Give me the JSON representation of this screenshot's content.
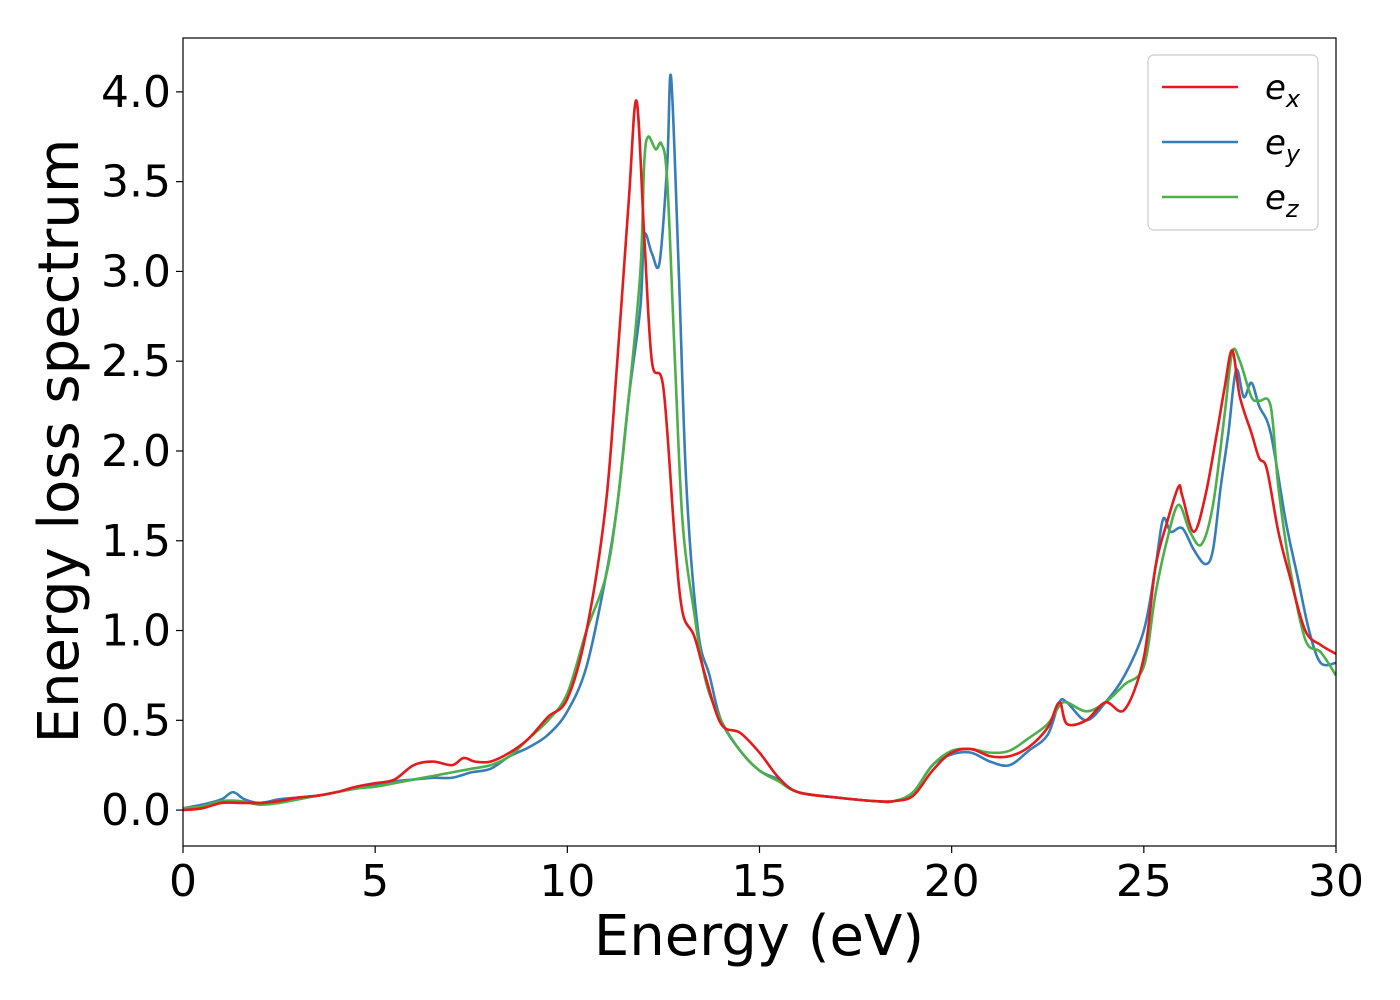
{
  "chart_data": {
    "type": "line",
    "title": "",
    "xlabel": "Energy (eV)",
    "ylabel": "Energy loss spectrum",
    "xlim": [
      0,
      30
    ],
    "ylim": [
      -0.2,
      4.3
    ],
    "xticks": [
      0,
      5,
      10,
      15,
      20,
      25,
      30
    ],
    "xtick_labels": [
      "0",
      "5",
      "10",
      "15",
      "20",
      "25",
      "30"
    ],
    "yticks": [
      0.0,
      0.5,
      1.0,
      1.5,
      2.0,
      2.5,
      3.0,
      3.5,
      4.0
    ],
    "ytick_labels": [
      "0.0",
      "0.5",
      "1.0",
      "1.5",
      "2.0",
      "2.5",
      "3.0",
      "3.5",
      "4.0"
    ],
    "grid": false,
    "legend_position": "top-right",
    "series": [
      {
        "name": "e_x",
        "legend_base": "e",
        "legend_sub": "x",
        "color": "#e41a1c",
        "x": [
          0,
          0.5,
          1.0,
          1.5,
          2.0,
          2.5,
          3.0,
          3.5,
          4.0,
          4.5,
          5.0,
          5.5,
          6.0,
          6.5,
          7.0,
          7.3,
          7.6,
          8.0,
          8.5,
          9.0,
          9.5,
          10.0,
          10.5,
          11.0,
          11.3,
          11.6,
          11.8,
          12.0,
          12.2,
          12.5,
          12.8,
          13.0,
          13.3,
          13.6,
          14.0,
          14.5,
          15.0,
          15.5,
          16.0,
          17.0,
          18.0,
          18.5,
          19.0,
          19.5,
          20.0,
          20.5,
          21.0,
          21.5,
          22.0,
          22.5,
          22.8,
          23.0,
          23.5,
          24.0,
          24.5,
          25.0,
          25.3,
          25.6,
          25.9,
          26.0,
          26.3,
          26.6,
          26.9,
          27.1,
          27.3,
          27.5,
          27.8,
          28.0,
          28.2,
          28.5,
          28.8,
          29.2,
          29.6,
          30.0
        ],
        "values": [
          0.0,
          0.01,
          0.04,
          0.04,
          0.04,
          0.05,
          0.07,
          0.08,
          0.1,
          0.13,
          0.15,
          0.17,
          0.25,
          0.27,
          0.25,
          0.29,
          0.27,
          0.27,
          0.32,
          0.4,
          0.52,
          0.62,
          1.0,
          1.7,
          2.5,
          3.4,
          3.95,
          3.2,
          2.5,
          2.35,
          1.5,
          1.1,
          0.97,
          0.74,
          0.48,
          0.43,
          0.32,
          0.18,
          0.1,
          0.07,
          0.05,
          0.05,
          0.08,
          0.22,
          0.32,
          0.34,
          0.3,
          0.3,
          0.35,
          0.46,
          0.6,
          0.48,
          0.5,
          0.6,
          0.56,
          0.85,
          1.35,
          1.6,
          1.8,
          1.75,
          1.55,
          1.75,
          2.1,
          2.35,
          2.56,
          2.3,
          2.1,
          1.96,
          1.9,
          1.55,
          1.3,
          1.0,
          0.92,
          0.87
        ]
      },
      {
        "name": "e_y",
        "legend_base": "e",
        "legend_sub": "y",
        "color": "#377eb8",
        "x": [
          0,
          0.5,
          1.0,
          1.3,
          1.6,
          2.0,
          2.5,
          3.0,
          3.5,
          4.0,
          4.5,
          5.0,
          5.5,
          6.0,
          6.5,
          7.0,
          7.5,
          8.0,
          8.5,
          9.0,
          9.5,
          10.0,
          10.5,
          11.0,
          11.3,
          11.6,
          11.9,
          12.0,
          12.2,
          12.4,
          12.6,
          12.7,
          12.9,
          13.1,
          13.4,
          13.7,
          14.0,
          14.5,
          15.0,
          15.5,
          16.0,
          17.0,
          18.0,
          18.5,
          19.0,
          19.5,
          20.0,
          20.5,
          21.0,
          21.5,
          22.0,
          22.5,
          22.8,
          23.0,
          23.5,
          24.0,
          24.5,
          25.0,
          25.3,
          25.5,
          25.7,
          26.0,
          26.3,
          26.6,
          26.8,
          27.0,
          27.2,
          27.4,
          27.6,
          27.8,
          28.0,
          28.3,
          28.7,
          29.0,
          29.3,
          29.6,
          30.0
        ],
        "values": [
          0.01,
          0.03,
          0.06,
          0.1,
          0.06,
          0.04,
          0.06,
          0.07,
          0.08,
          0.1,
          0.12,
          0.14,
          0.16,
          0.17,
          0.18,
          0.18,
          0.21,
          0.23,
          0.3,
          0.35,
          0.42,
          0.55,
          0.8,
          1.3,
          1.7,
          2.3,
          2.8,
          3.2,
          3.1,
          3.05,
          3.6,
          4.08,
          3.0,
          1.8,
          1.0,
          0.75,
          0.5,
          0.33,
          0.22,
          0.17,
          0.1,
          0.07,
          0.05,
          0.05,
          0.1,
          0.25,
          0.31,
          0.32,
          0.27,
          0.25,
          0.33,
          0.42,
          0.6,
          0.6,
          0.5,
          0.6,
          0.75,
          1.0,
          1.35,
          1.62,
          1.55,
          1.57,
          1.45,
          1.37,
          1.45,
          1.8,
          2.1,
          2.45,
          2.3,
          2.38,
          2.25,
          2.1,
          1.6,
          1.3,
          1.0,
          0.82,
          0.82
        ]
      },
      {
        "name": "e_z",
        "legend_base": "e",
        "legend_sub": "z",
        "color": "#4daf4a",
        "x": [
          0,
          0.5,
          1.0,
          1.5,
          2.0,
          2.5,
          3.0,
          3.5,
          4.0,
          4.5,
          5.0,
          5.5,
          6.0,
          6.5,
          7.0,
          7.5,
          8.0,
          8.5,
          9.0,
          9.5,
          10.0,
          10.5,
          11.0,
          11.3,
          11.6,
          11.9,
          12.0,
          12.1,
          12.3,
          12.45,
          12.6,
          12.8,
          13.0,
          13.3,
          13.6,
          14.0,
          14.5,
          15.0,
          15.5,
          16.0,
          17.0,
          18.0,
          18.5,
          19.0,
          19.5,
          20.0,
          20.5,
          21.0,
          21.5,
          22.0,
          22.5,
          22.8,
          23.0,
          23.5,
          24.0,
          24.5,
          25.0,
          25.3,
          25.6,
          25.9,
          26.2,
          26.5,
          26.8,
          27.1,
          27.3,
          27.5,
          27.8,
          28.0,
          28.3,
          28.5,
          28.8,
          29.2,
          29.6,
          30.0
        ],
        "values": [
          0.01,
          0.02,
          0.05,
          0.05,
          0.03,
          0.04,
          0.06,
          0.08,
          0.1,
          0.12,
          0.13,
          0.15,
          0.17,
          0.19,
          0.21,
          0.23,
          0.25,
          0.3,
          0.4,
          0.5,
          0.65,
          1.0,
          1.3,
          1.7,
          2.3,
          3.0,
          3.6,
          3.75,
          3.68,
          3.71,
          3.5,
          2.5,
          1.6,
          1.1,
          0.72,
          0.5,
          0.33,
          0.22,
          0.16,
          0.1,
          0.07,
          0.05,
          0.05,
          0.1,
          0.25,
          0.33,
          0.34,
          0.32,
          0.33,
          0.4,
          0.48,
          0.58,
          0.6,
          0.55,
          0.6,
          0.7,
          0.8,
          1.2,
          1.5,
          1.7,
          1.55,
          1.48,
          1.7,
          2.2,
          2.55,
          2.5,
          2.3,
          2.28,
          2.25,
          1.8,
          1.35,
          0.95,
          0.88,
          0.75
        ]
      }
    ]
  }
}
